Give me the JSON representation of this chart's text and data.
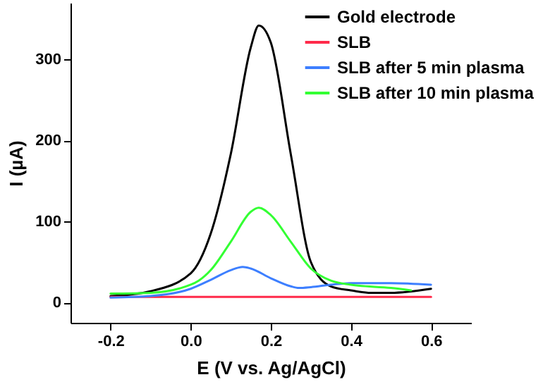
{
  "chart_data": {
    "type": "line",
    "xlabel": "E (V vs. Ag/AgCl)",
    "ylabel": "I (µA)",
    "xlim": [
      -0.3,
      0.7
    ],
    "ylim": [
      -25,
      370
    ],
    "xticks": [
      -0.2,
      {
        "value": 0,
        "label": "0.0"
      },
      0.2,
      0.4,
      0.6
    ],
    "yticks": [
      0,
      100,
      200,
      300
    ],
    "grid": false,
    "legend": "top right",
    "marker": "none",
    "line_style": "solid",
    "series": [
      {
        "name": "Gold electrode",
        "color": "#000000",
        "x": [
          -0.2,
          -0.1,
          0.0,
          0.05,
          0.1,
          0.15,
          0.17,
          0.2,
          0.25,
          0.3,
          0.35,
          0.4,
          0.45,
          0.5,
          0.6
        ],
        "values": [
          8,
          14,
          36,
          85,
          183,
          315,
          342,
          321,
          183,
          50,
          20,
          15,
          12,
          12,
          17
        ]
      },
      {
        "name": "SLB",
        "color": "#ff2a4a",
        "x": [
          -0.2,
          0.0,
          0.2,
          0.4,
          0.6
        ],
        "values": [
          7,
          7,
          7,
          7,
          7
        ]
      },
      {
        "name": "SLB after 5 min plasma",
        "color": "#3d7fff",
        "x": [
          -0.2,
          -0.1,
          0.0,
          0.05,
          0.1,
          0.13,
          0.15,
          0.2,
          0.25,
          0.27,
          0.3,
          0.35,
          0.4,
          0.5,
          0.6
        ],
        "values": [
          6,
          8,
          17,
          28,
          40,
          44,
          42,
          30,
          20,
          18,
          19,
          22,
          24,
          24,
          22
        ]
      },
      {
        "name": "SLB after 10 min plasma",
        "color": "#33ff33",
        "x": [
          -0.2,
          -0.1,
          0.0,
          0.02,
          0.05,
          0.1,
          0.15,
          0.17,
          0.2,
          0.25,
          0.3,
          0.35,
          0.4,
          0.5,
          0.55
        ],
        "values": [
          11,
          12,
          22,
          27,
          40,
          75,
          112,
          117,
          108,
          75,
          42,
          27,
          22,
          18,
          15
        ]
      }
    ]
  }
}
